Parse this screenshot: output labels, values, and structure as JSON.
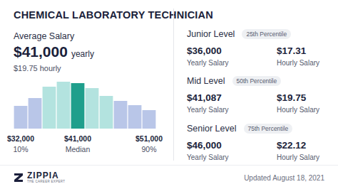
{
  "header": {
    "title": "CHEMICAL LABORATORY TECHNICIAN"
  },
  "average": {
    "label": "Average Salary",
    "yearly": "$41,000",
    "yearly_unit": "yearly",
    "hourly": "$19.75",
    "hourly_unit": "hourly"
  },
  "chart_data": {
    "type": "bar",
    "categories": [
      "$32,000",
      null,
      null,
      null,
      "$41,000",
      null,
      null,
      null,
      null,
      "$51,000"
    ],
    "percentiles": [
      "10%",
      null,
      null,
      null,
      "Median",
      null,
      null,
      null,
      null,
      "90%"
    ],
    "values": [
      32,
      43,
      59,
      66,
      64,
      57,
      46,
      39,
      33,
      26
    ],
    "colors": [
      "#b9c6e8",
      "#b9c6e8",
      "#b3e3df",
      "#b3e3df",
      "#1f9f8c",
      "#b3e3df",
      "#b3e3df",
      "#b9c6e8",
      "#b9c6e8",
      "#b9c6e8"
    ],
    "ylim": [
      0,
      66
    ],
    "grid": false,
    "tick_labels": "x"
  },
  "levels": [
    {
      "name": "Junior Level",
      "percentile": "25th Percentile",
      "yearly": "$36,000",
      "yearly_label": "Yearly Salary",
      "hourly": "$17.31",
      "hourly_label": "Hourly Salary"
    },
    {
      "name": "Mid Level",
      "percentile": "50th Percentile",
      "yearly": "$41,087",
      "yearly_label": "Yearly Salary",
      "hourly": "$19.75",
      "hourly_label": "Hourly Salary"
    },
    {
      "name": "Senior Level",
      "percentile": "75th Percentile",
      "yearly": "$46,000",
      "yearly_label": "Yearly Salary",
      "hourly": "$22.12",
      "hourly_label": "Hourly Salary"
    }
  ],
  "footer": {
    "brand": "ZIPPIA",
    "tagline": "THE CAREER EXPERT",
    "updated": "Updated August 18, 2021"
  }
}
